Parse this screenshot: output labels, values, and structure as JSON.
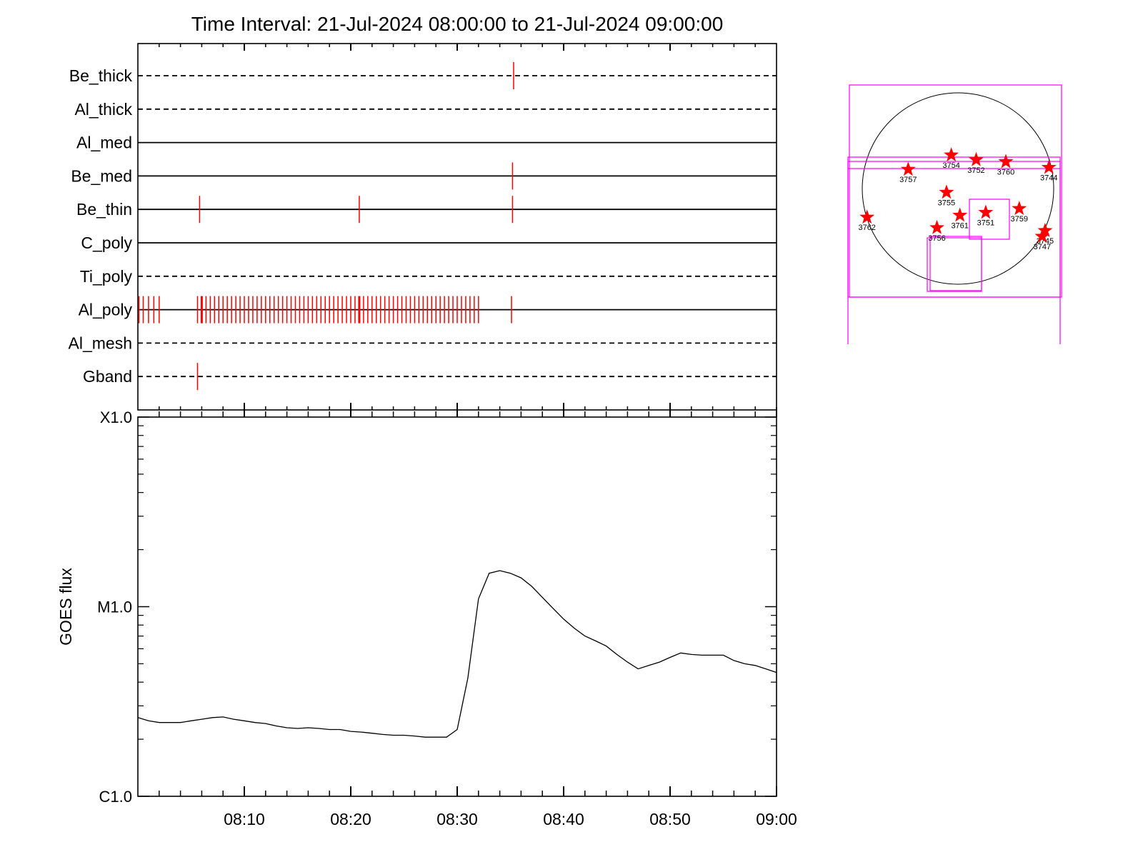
{
  "title": "Time Interval: 21-Jul-2024 08:00:00 to 21-Jul-2024 09:00:00",
  "colors": {
    "axis": "#000000",
    "event": "#ff0000",
    "box": "#ff00ff"
  },
  "chart_data": [
    {
      "type": "timeline",
      "x_range": [
        "08:00",
        "09:00"
      ],
      "x_ticks": [
        "08:10",
        "08:20",
        "08:30",
        "08:40",
        "08:50",
        "09:00"
      ],
      "filters": [
        {
          "name": "Be_thick",
          "style": "dashed",
          "events": [
            35.3
          ]
        },
        {
          "name": "Al_thick",
          "style": "dashed",
          "events": []
        },
        {
          "name": "Al_med",
          "style": "solid",
          "events": []
        },
        {
          "name": "Be_med",
          "style": "solid",
          "events": [
            35.2
          ]
        },
        {
          "name": "Be_thin",
          "style": "solid",
          "events": [
            5.8,
            20.8,
            35.2
          ]
        },
        {
          "name": "C_poly",
          "style": "solid",
          "events": []
        },
        {
          "name": "Ti_poly",
          "style": "dashed",
          "events": []
        },
        {
          "name": "Al_poly",
          "style": "solid",
          "events": [
            0.1,
            0.5,
            1.0,
            1.5,
            2.0,
            5.6,
            6.0,
            6.4,
            6.8,
            7.2,
            7.6,
            8.0,
            8.4,
            8.8,
            9.2,
            9.6,
            10.0,
            10.4,
            10.8,
            11.2,
            11.6,
            12.0,
            12.4,
            12.8,
            13.2,
            13.6,
            14.0,
            14.4,
            14.8,
            15.2,
            15.6,
            16.0,
            16.4,
            16.8,
            17.2,
            17.6,
            18.0,
            18.4,
            18.8,
            19.2,
            19.6,
            20.0,
            20.4,
            20.8,
            21.2,
            21.6,
            22.0,
            22.4,
            22.8,
            23.2,
            23.6,
            24.0,
            24.4,
            24.8,
            25.2,
            25.6,
            26.0,
            26.4,
            26.8,
            27.2,
            27.6,
            28.0,
            28.4,
            28.8,
            29.2,
            29.6,
            30.0,
            30.4,
            30.8,
            31.2,
            31.6,
            32.0,
            35.1
          ],
          "thick_events": [
            6.0,
            20.8
          ]
        },
        {
          "name": "Al_mesh",
          "style": "dashed",
          "events": []
        },
        {
          "name": "Gband",
          "style": "dashed",
          "events": [
            5.6
          ]
        }
      ]
    },
    {
      "type": "line",
      "ylabel": "GOES flux",
      "y_scale": "log",
      "y_ticks": [
        "C1.0",
        "M1.0",
        "X1.0"
      ],
      "x_range": [
        "08:00",
        "09:00"
      ],
      "x_ticks": [
        "08:10",
        "08:20",
        "08:30",
        "08:40",
        "08:50",
        "09:00"
      ],
      "series": [
        {
          "x": [
            0,
            1,
            2,
            3,
            4,
            5,
            6,
            7,
            8,
            9,
            10,
            11,
            12,
            13,
            14,
            15,
            16,
            17,
            18,
            19,
            20,
            21,
            22,
            23,
            24,
            25,
            26,
            27,
            28,
            29,
            30,
            31,
            32,
            33,
            34,
            35,
            36,
            37,
            38,
            39,
            40,
            41,
            42,
            43,
            44,
            45,
            46,
            47,
            48,
            49,
            50,
            51,
            52,
            53,
            54,
            55,
            56,
            57,
            58,
            59,
            60
          ],
          "y": [
            2.6e-06,
            2.5e-06,
            2.45e-06,
            2.45e-06,
            2.45e-06,
            2.5e-06,
            2.55e-06,
            2.6e-06,
            2.62e-06,
            2.55e-06,
            2.5e-06,
            2.45e-06,
            2.42e-06,
            2.35e-06,
            2.3e-06,
            2.28e-06,
            2.3e-06,
            2.28e-06,
            2.25e-06,
            2.25e-06,
            2.2e-06,
            2.18e-06,
            2.15e-06,
            2.12e-06,
            2.1e-06,
            2.1e-06,
            2.08e-06,
            2.05e-06,
            2.05e-06,
            2.05e-06,
            2.25e-06,
            4.2e-06,
            1.1e-05,
            1.5e-05,
            1.55e-05,
            1.5e-05,
            1.42e-05,
            1.28e-05,
            1.12e-05,
            9.8e-06,
            8.6e-06,
            7.7e-06,
            7e-06,
            6.6e-06,
            6.2e-06,
            5.6e-06,
            5.1e-06,
            4.7e-06,
            4.9e-06,
            5.1e-06,
            5.4e-06,
            5.7e-06,
            5.6e-06,
            5.55e-06,
            5.55e-06,
            5.55e-06,
            5.2e-06,
            5e-06,
            4.9e-06,
            4.7e-06,
            4.5e-06
          ]
        }
      ]
    },
    {
      "type": "scatter",
      "subtype": "solar-disk-map",
      "regions": [
        {
          "label": "3757",
          "x": -0.52,
          "y": 0.2
        },
        {
          "label": "3754",
          "x": -0.07,
          "y": 0.35
        },
        {
          "label": "3752",
          "x": 0.19,
          "y": 0.3
        },
        {
          "label": "3760",
          "x": 0.5,
          "y": 0.28
        },
        {
          "label": "3744",
          "x": 0.95,
          "y": 0.22
        },
        {
          "label": "3755",
          "x": -0.12,
          "y": -0.04
        },
        {
          "label": "3751",
          "x": 0.29,
          "y": -0.25
        },
        {
          "label": "3761",
          "x": 0.02,
          "y": -0.28
        },
        {
          "label": "3759",
          "x": 0.64,
          "y": -0.21
        },
        {
          "label": "3762",
          "x": -0.95,
          "y": -0.3
        },
        {
          "label": "3756",
          "x": -0.22,
          "y": -0.41
        },
        {
          "label": "3745",
          "x": 0.91,
          "y": -0.44
        },
        {
          "label": "3747",
          "x": 0.88,
          "y": -0.5
        }
      ]
    }
  ]
}
